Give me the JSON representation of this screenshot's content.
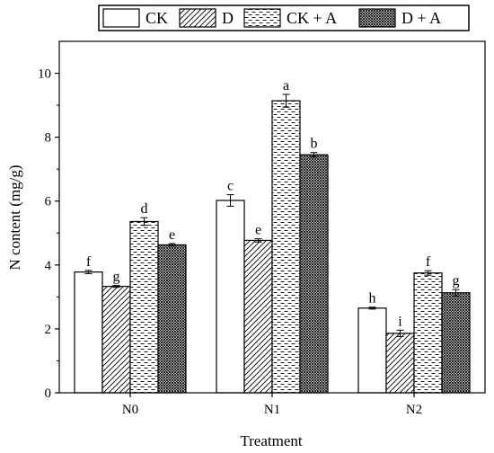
{
  "chart_data": {
    "type": "bar",
    "xlabel": "Treatment",
    "ylabel": "N content (mg/g)",
    "ylim": [
      0,
      11
    ],
    "yticks": [
      0,
      2,
      4,
      6,
      8,
      10
    ],
    "categories": [
      "N0",
      "N1",
      "N2"
    ],
    "legend_position": "top",
    "series": [
      {
        "name": "CK",
        "pattern": "plain",
        "values": [
          3.78,
          6.02,
          2.65
        ],
        "errors": [
          0.05,
          0.18,
          0.03
        ],
        "labels": [
          "f",
          "c",
          "h"
        ]
      },
      {
        "name": "D",
        "pattern": "diagonal",
        "values": [
          3.33,
          4.77,
          1.86
        ],
        "errors": [
          0.03,
          0.05,
          0.1
        ],
        "labels": [
          "g",
          "e",
          "i"
        ]
      },
      {
        "name": "CK + A",
        "pattern": "dashes",
        "values": [
          5.36,
          9.14,
          3.75
        ],
        "errors": [
          0.12,
          0.2,
          0.07
        ],
        "labels": [
          "d",
          "a",
          "f"
        ]
      },
      {
        "name": "D + A",
        "pattern": "crosshatch",
        "values": [
          4.63,
          7.45,
          3.13
        ],
        "errors": [
          0.04,
          0.07,
          0.1
        ],
        "labels": [
          "e",
          "b",
          "g"
        ]
      }
    ]
  }
}
